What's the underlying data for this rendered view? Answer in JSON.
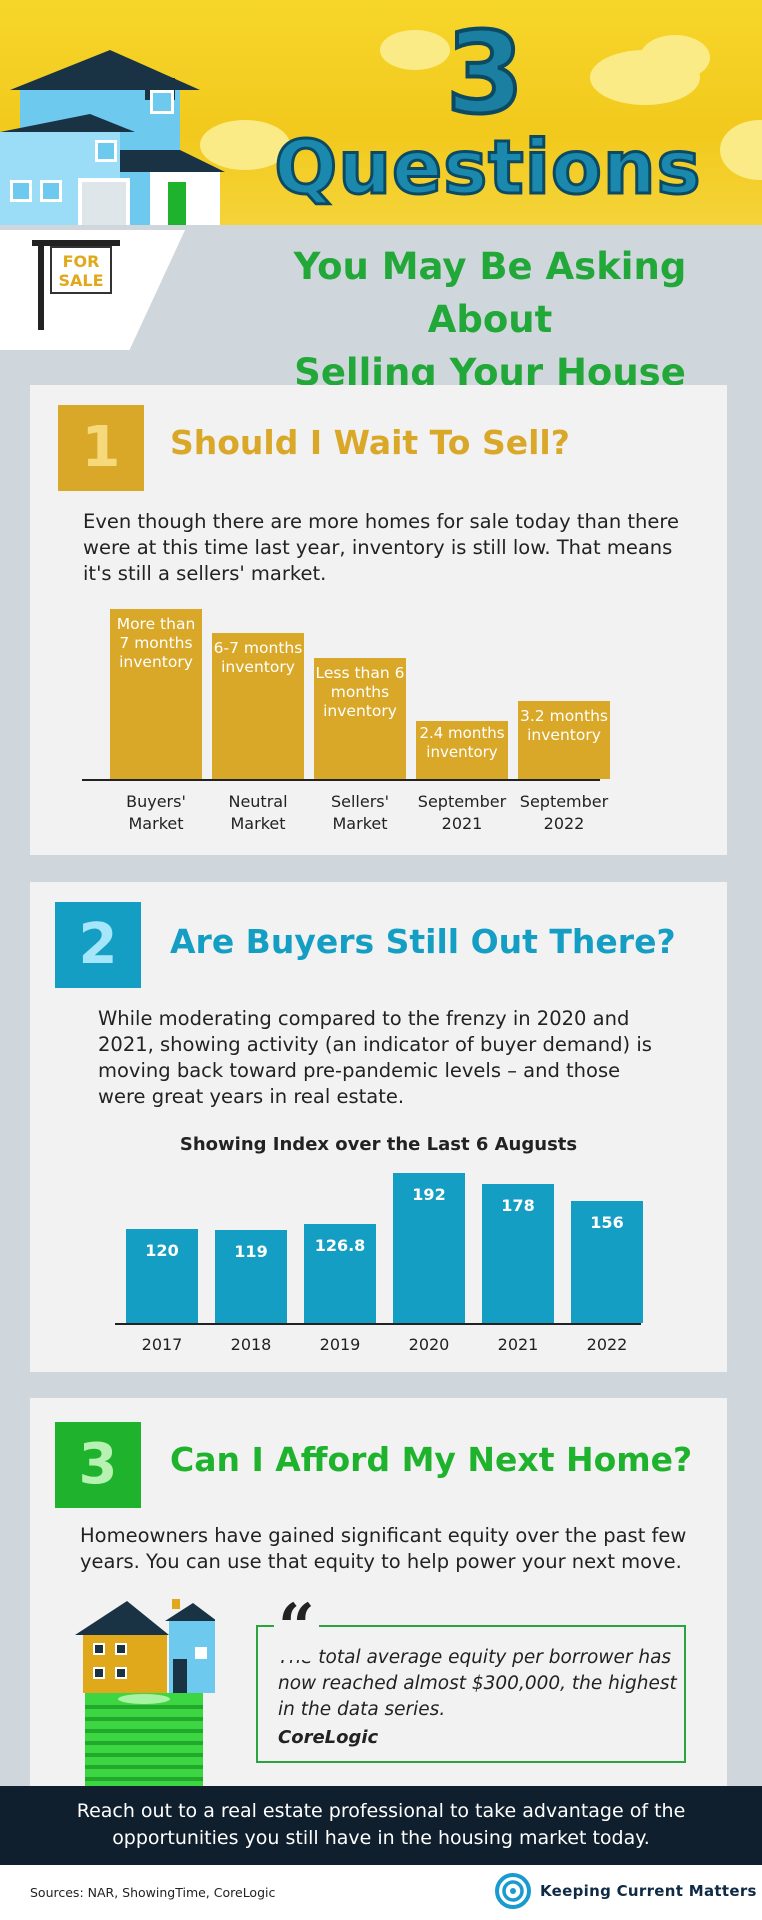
{
  "header": {
    "number": "3",
    "title": "Questions",
    "subtitle_line1": "You May Be Asking About",
    "subtitle_line2": "Selling Your House Today",
    "sign_line1": "FOR",
    "sign_line2": "SALE"
  },
  "section1": {
    "number": "1",
    "title": "Should I Wait To Sell?",
    "body": "Even though there are more homes for sale today than there were at this time last year, inventory is still low. That means it's still a sellers' market.",
    "color": "#d9a829",
    "chart_data": {
      "type": "bar",
      "categories": [
        "Buyers' Market",
        "Neutral Market",
        "Sellers' Market",
        "September 2021",
        "September 2022"
      ],
      "bar_labels": [
        "More than 7 months inventory",
        "6-7 months inventory",
        "Less than 6 months inventory",
        "2.4 months inventory",
        "3.2 months inventory"
      ],
      "values": [
        7,
        6,
        5,
        2.4,
        3.2
      ],
      "unit": "months inventory",
      "title": "",
      "xlabel": "",
      "ylabel": "",
      "grid": false
    }
  },
  "section2": {
    "number": "2",
    "title": "Are Buyers Still Out There?",
    "body": "While moderating compared to the frenzy in 2020 and 2021, showing activity (an indicator of buyer demand) is moving back toward pre-pandemic levels – and those were great years in real estate.",
    "color": "#159ec4",
    "chart_data": {
      "type": "bar",
      "title": "Showing Index over the Last 6 Augusts",
      "categories": [
        "2017",
        "2018",
        "2019",
        "2020",
        "2021",
        "2022"
      ],
      "values": [
        120,
        119,
        126.8,
        192,
        178,
        156
      ],
      "value_labels": [
        "120",
        "119",
        "126.8",
        "192",
        "178",
        "156"
      ],
      "xlabel": "",
      "ylabel": "",
      "ylim": [
        0,
        200
      ],
      "grid": false
    }
  },
  "section3": {
    "number": "3",
    "title": "Can I Afford My Next Home?",
    "body": "Homeowners have gained significant equity over the past few years. You can use that equity to help power your next move.",
    "color": "#1fb32d",
    "quote_mark": "“",
    "quote": "The total average equity per borrower has now reached almost $300,000, the highest in the data series.",
    "quote_source": "CoreLogic"
  },
  "cta": {
    "text": "Reach out to a real estate professional to take advantage of the opportunities you still have in the housing market today."
  },
  "footer": {
    "sources": "Sources: NAR, ShowingTime, CoreLogic",
    "brand": "Keeping Current Matters",
    "logo_icon": "kcm-swirl-icon"
  }
}
